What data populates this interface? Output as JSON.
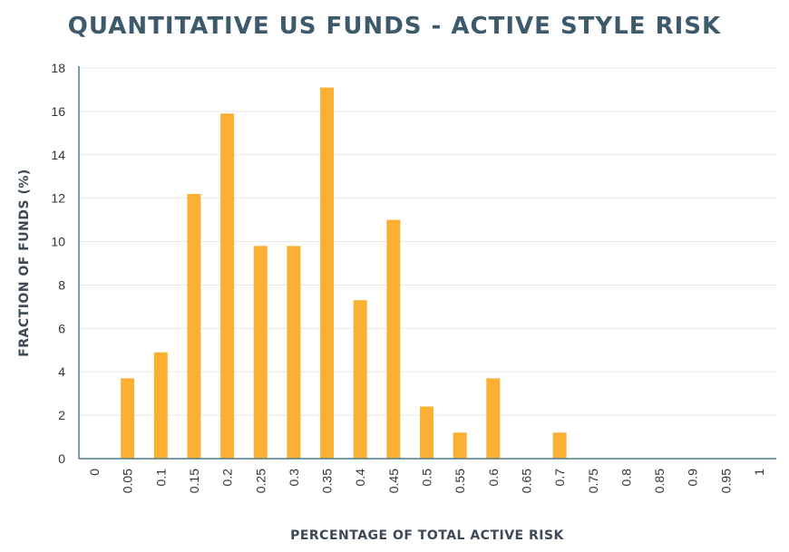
{
  "chart_data": {
    "type": "bar",
    "title": "QUANTITATIVE US FUNDS - ACTIVE STYLE RISK",
    "xlabel": "PERCENTAGE OF TOTAL ACTIVE RISK",
    "ylabel": "FRACTION OF FUNDS (%)",
    "categories": [
      "0",
      "0.05",
      "0.1",
      "0.15",
      "0.2",
      "0.25",
      "0.3",
      "0.35",
      "0.4",
      "0.45",
      "0.5",
      "0.55",
      "0.6",
      "0.65",
      "0.7",
      "0.75",
      "0.8",
      "0.85",
      "0.9",
      "0.95",
      "1"
    ],
    "values": [
      0,
      3.7,
      4.9,
      12.2,
      15.9,
      9.8,
      9.8,
      17.1,
      7.3,
      11.0,
      2.4,
      1.2,
      3.7,
      0,
      1.2,
      0,
      0,
      0,
      0,
      0,
      0
    ],
    "ylim": [
      0,
      18
    ],
    "yticks": [
      "0",
      "2",
      "4",
      "6",
      "8",
      "10",
      "12",
      "14",
      "16",
      "18"
    ],
    "grid": "horizontal",
    "bar_color": "#fbb034",
    "grid_color": "#e8e8e8",
    "axis_color": "#4f7a8c",
    "title_color": "#3d5a6c"
  }
}
